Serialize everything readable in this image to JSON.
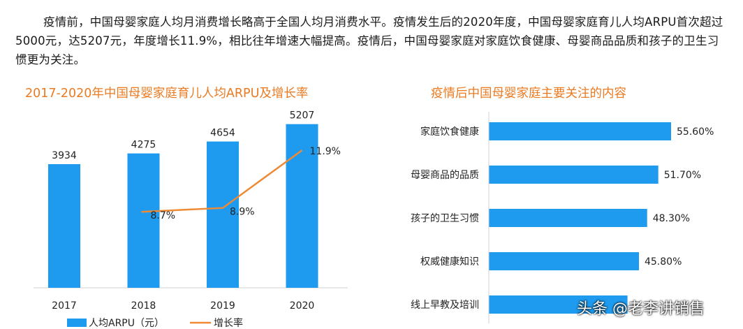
{
  "intro_text": "疫情前，中国母婴家庭人均月消费增长略高于全国人均月消费水平。疫情发生后的2020年度，中国母婴家庭育儿人均ARPU首次超过5000元，达5207元，年度增长11.9%，相比往年增速大幅提高。疫情后，中国母婴家庭对家庭饮食健康、母婴商品品质和孩子的卫生习惯更为关注。",
  "watermark": "头条 @老李讲销售",
  "colors": {
    "bar": "#1e9bef",
    "line": "#ee8a33",
    "title": "#ea7b22"
  },
  "chart_data": [
    {
      "type": "bar",
      "title": "2017-2020年中国母婴家庭育儿人均ARPU及增长率",
      "categories": [
        "2017",
        "2018",
        "2019",
        "2020"
      ],
      "series": [
        {
          "name": "人均ARPU（元）",
          "type": "bar",
          "values": [
            3934,
            4275,
            4654,
            5207
          ],
          "labels": [
            "3934",
            "4275",
            "4654",
            "5207"
          ]
        },
        {
          "name": "增长率",
          "type": "line",
          "values": [
            null,
            8.7,
            8.9,
            11.9
          ],
          "labels": [
            "",
            "8.7%",
            "8.9%",
            "11.9%"
          ]
        }
      ],
      "ylim": [
        0,
        5600
      ],
      "legend": "bottom",
      "grid": false
    },
    {
      "type": "bar",
      "orientation": "horizontal",
      "title": "疫情后中国母婴家庭主要关注的内容",
      "categories": [
        "家庭饮食健康",
        "母婴商品的品质",
        "孩子的卫生习惯",
        "权威健康知识",
        "线上早教及培训"
      ],
      "values": [
        55.6,
        51.7,
        48.3,
        45.8,
        42.3
      ],
      "labels": [
        "55.60%",
        "51.70%",
        "48.30%",
        "45.80%",
        ""
      ],
      "xlim": [
        0,
        70
      ],
      "grid": false
    }
  ]
}
